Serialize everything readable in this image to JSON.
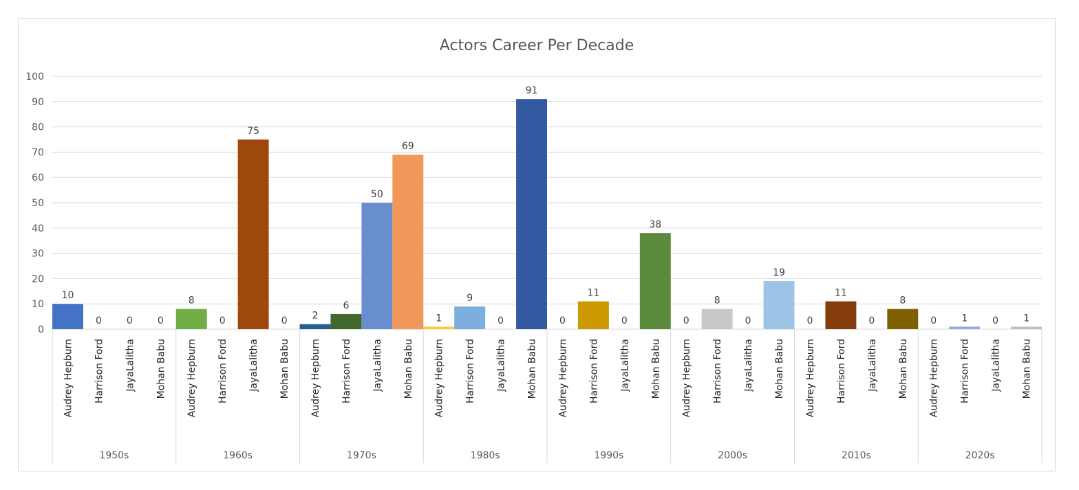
{
  "chart_data": {
    "type": "bar",
    "title": "Actors Career Per Decade",
    "xlabel": "",
    "ylabel": "",
    "ylim": [
      0,
      100
    ],
    "yticks": [
      0,
      10,
      20,
      30,
      40,
      50,
      60,
      70,
      80,
      90,
      100
    ],
    "grid": true,
    "legend": "none",
    "subcategories": [
      "Audrey Hepburn",
      "Harrison Ford",
      "JayaLalitha",
      "Mohan Babu"
    ],
    "groups": [
      {
        "label": "1950s",
        "values": [
          10,
          0,
          0,
          0
        ],
        "colors": [
          "#4472c4",
          "#a5a5a5",
          "#ffc000",
          "#5b9bd5"
        ]
      },
      {
        "label": "1960s",
        "values": [
          8,
          0,
          75,
          0
        ],
        "colors": [
          "#70ad47",
          "#264478",
          "#9e480e",
          "#636363"
        ]
      },
      {
        "label": "1970s",
        "values": [
          2,
          6,
          50,
          69
        ],
        "colors": [
          "#255e91",
          "#43682b",
          "#698ed0",
          "#f1975a"
        ]
      },
      {
        "label": "1980s",
        "values": [
          1,
          9,
          0,
          91
        ],
        "colors": [
          "#ffcd33",
          "#7cafdd",
          "#8cc168",
          "#335aa1"
        ]
      },
      {
        "label": "1990s",
        "values": [
          0,
          11,
          0,
          38
        ],
        "colors": [
          "#ed7d31",
          "#cc9a00",
          "#4472c4",
          "#5a8a3b"
        ]
      },
      {
        "label": "2000s",
        "values": [
          0,
          8,
          0,
          19
        ],
        "colors": [
          "#ed7d31",
          "#c9c9c9",
          "#4472c4",
          "#9dc3e6"
        ]
      },
      {
        "label": "2010s",
        "values": [
          0,
          11,
          0,
          8
        ],
        "colors": [
          "#ed7d31",
          "#843c0c",
          "#4472c4",
          "#7f6000"
        ]
      },
      {
        "label": "2020s",
        "values": [
          0,
          1,
          0,
          1
        ],
        "colors": [
          "#ed7d31",
          "#8faadc",
          "#4472c4",
          "#bfbfbf"
        ]
      }
    ]
  }
}
